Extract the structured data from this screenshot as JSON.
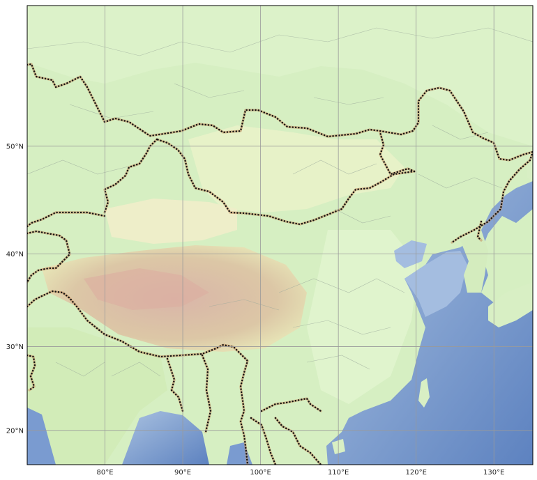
{
  "map": {
    "projection": "mercator",
    "extent": {
      "lon_min": 70,
      "lon_max": 135,
      "lat_min": 15.7,
      "lat_max": 60.5
    },
    "graticule_color": "#9a9a9a",
    "colors": {
      "ocean": "#6d8fc8",
      "ocean_shallow": "#a9c1e0",
      "lowland": "#d4efc0",
      "plains": "#e3f3c8",
      "plateau": "#d6b9a4",
      "desert": "#eeecc6",
      "border_dot": "#000000",
      "border_halo": "#c49060"
    },
    "x_ticks": [
      {
        "value": 80,
        "label": "80°E"
      },
      {
        "value": 90,
        "label": "90°E"
      },
      {
        "value": 100,
        "label": "100°E"
      },
      {
        "value": 110,
        "label": "110°E"
      },
      {
        "value": 120,
        "label": "120°E"
      },
      {
        "value": 130,
        "label": "130°E"
      }
    ],
    "y_ticks": [
      {
        "value": 20,
        "label": "20°N"
      },
      {
        "value": 30,
        "label": "30°N"
      },
      {
        "value": 40,
        "label": "40°N"
      },
      {
        "value": 50,
        "label": "50°N"
      }
    ]
  }
}
